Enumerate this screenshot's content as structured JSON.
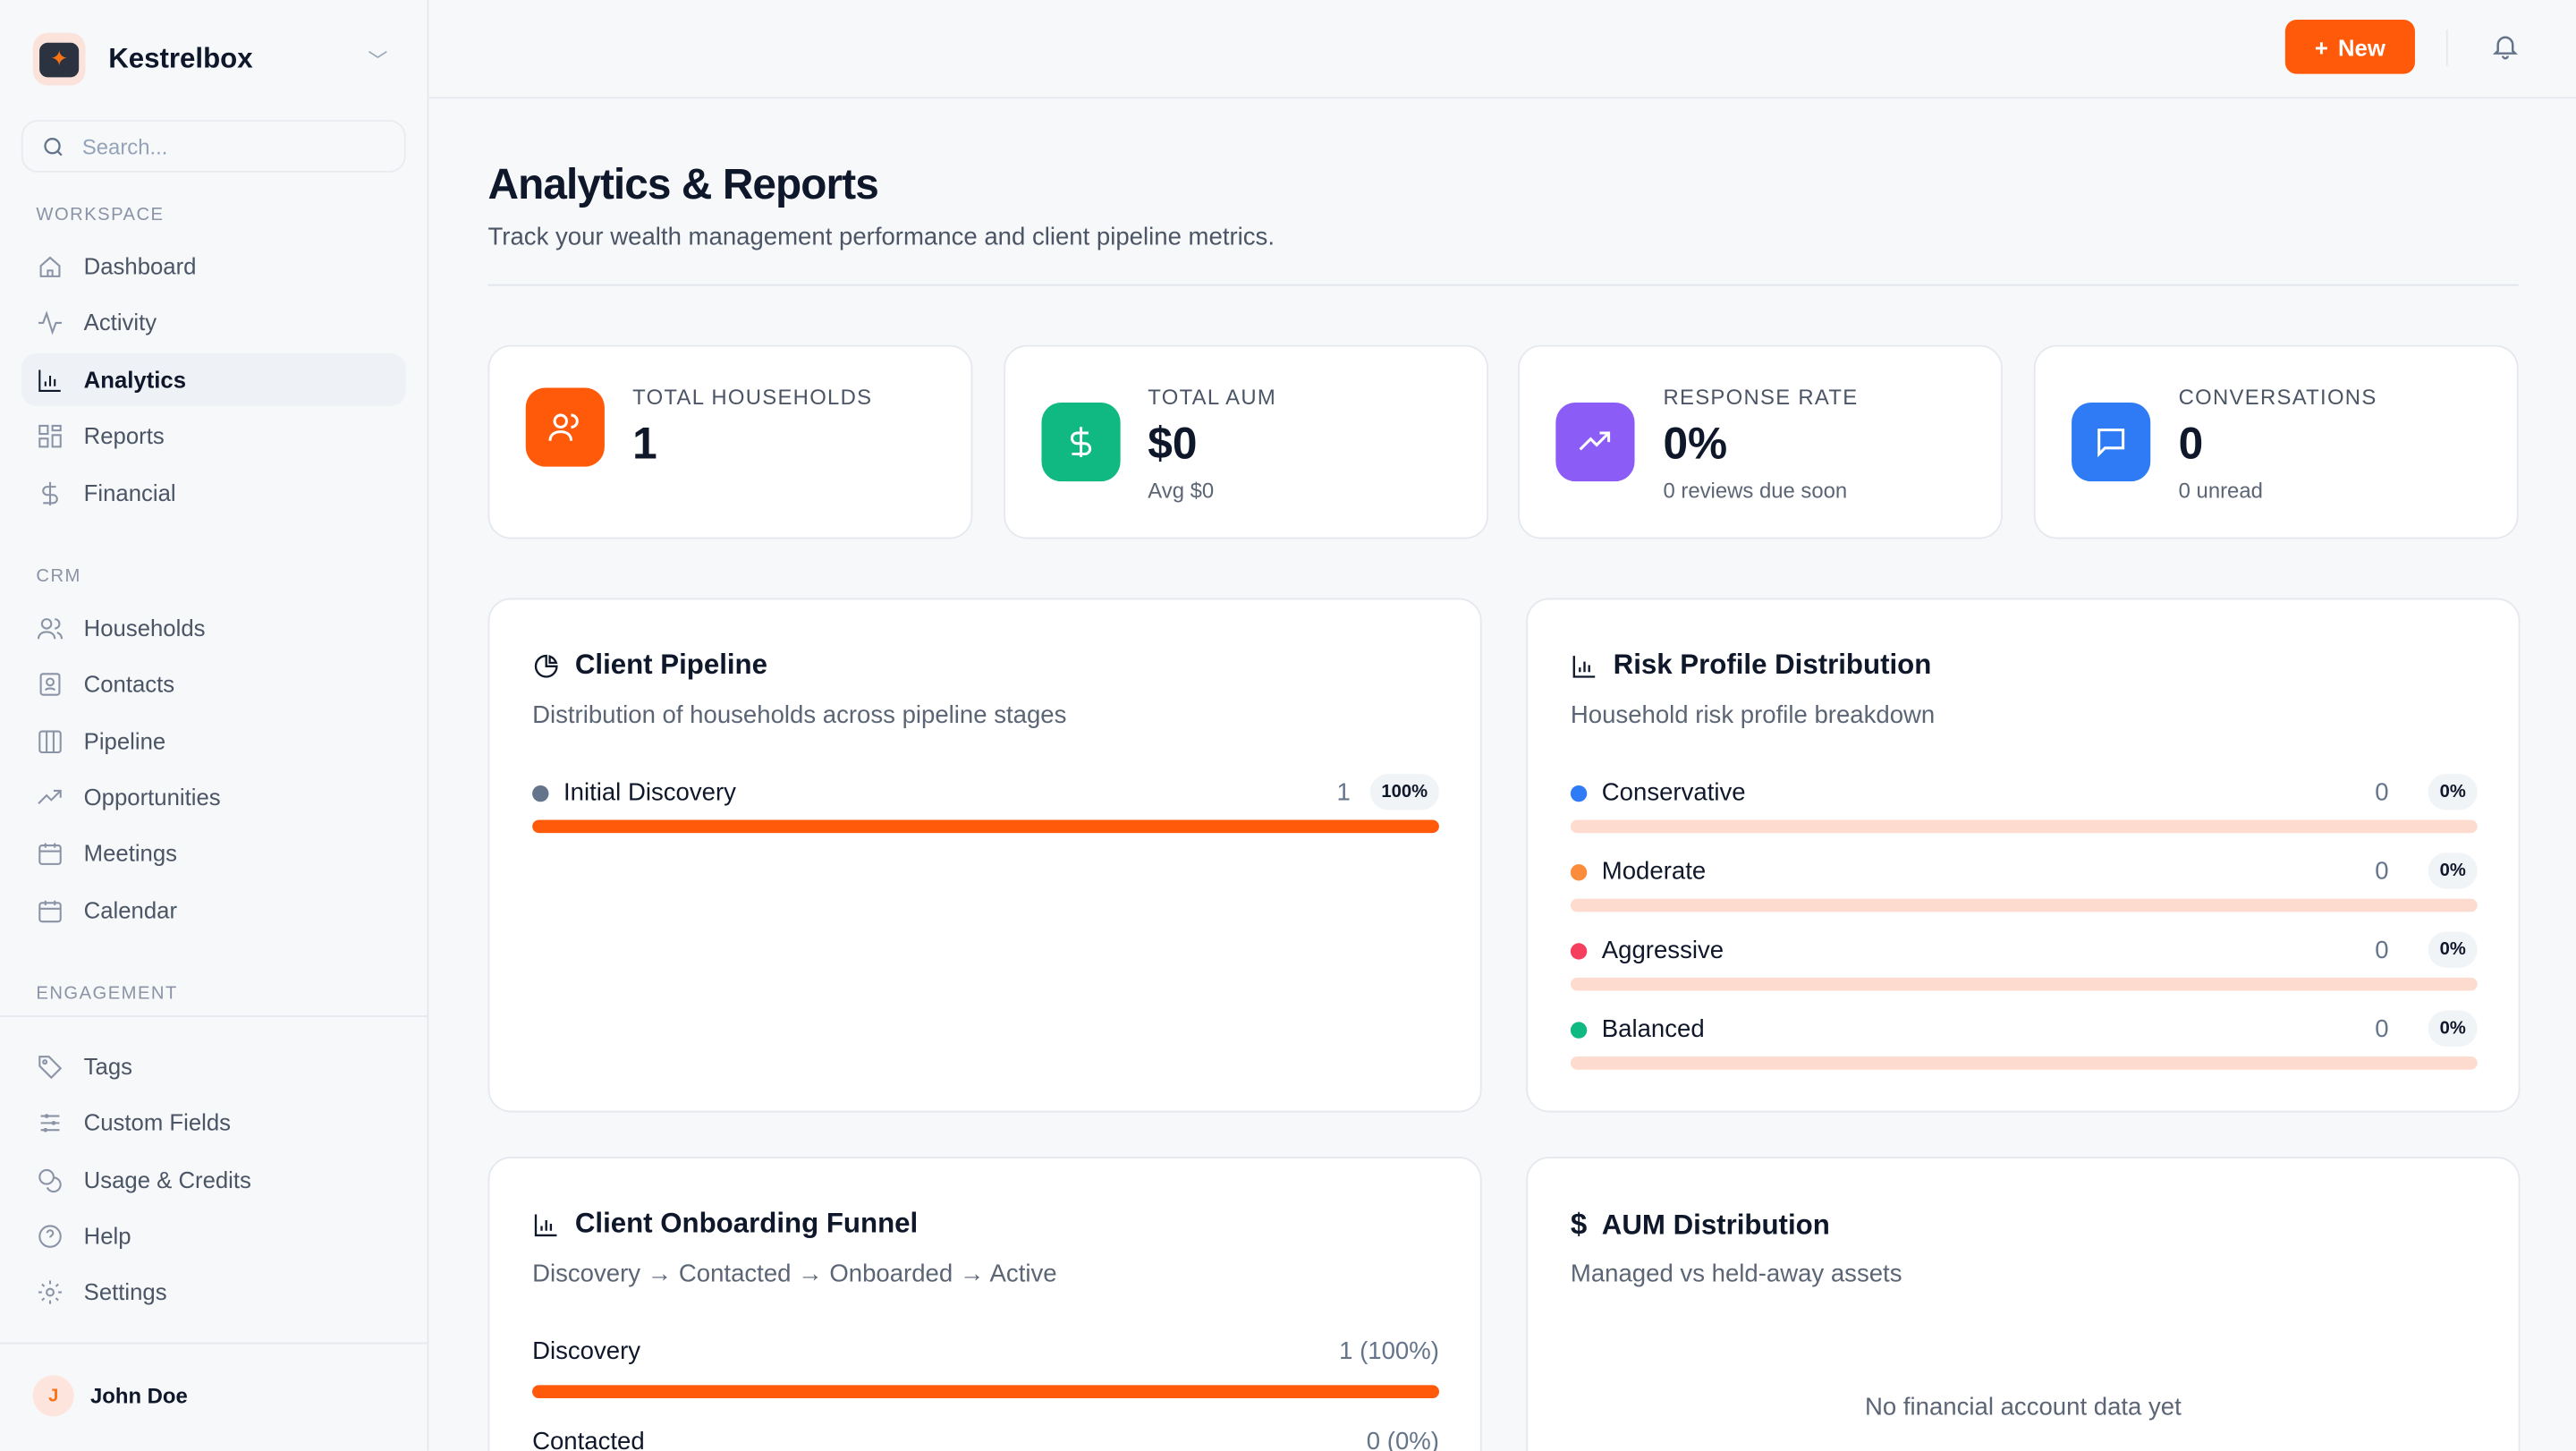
{
  "brand": {
    "name": "Kestrelbox"
  },
  "search": {
    "placeholder": "Search..."
  },
  "sidebar": {
    "sections": [
      "WORKSPACE",
      "CRM",
      "ENGAGEMENT"
    ],
    "workspace": [
      "Dashboard",
      "Activity",
      "Analytics",
      "Reports",
      "Financial"
    ],
    "crm": [
      "Households",
      "Contacts",
      "Pipeline",
      "Opportunities",
      "Meetings",
      "Calendar"
    ],
    "engagement": [
      "Tags",
      "Custom Fields",
      "Usage & Credits",
      "Help",
      "Settings"
    ],
    "active": "Analytics"
  },
  "user": {
    "name": "John Doe",
    "initial": "J"
  },
  "topbar": {
    "new_label": "New"
  },
  "page": {
    "title": "Analytics & Reports",
    "subtitle": "Track your wealth management performance and client pipeline metrics."
  },
  "stats": [
    {
      "label": "TOTAL HOUSEHOLDS",
      "value": "1",
      "sub": "",
      "color": "#ff5a0a"
    },
    {
      "label": "TOTAL AUM",
      "value": "$0",
      "sub": "Avg $0",
      "color": "#10b981"
    },
    {
      "label": "RESPONSE RATE",
      "value": "0%",
      "sub": "0 reviews due soon",
      "color": "#8b5cf6"
    },
    {
      "label": "CONVERSATIONS",
      "value": "0",
      "sub": "0 unread",
      "color": "#2f7bf6"
    }
  ],
  "pipeline": {
    "title": "Client Pipeline",
    "desc": "Distribution of households across pipeline stages",
    "rows": [
      {
        "name": "Initial Discovery",
        "count": "1",
        "pct": "100%",
        "fill": 1,
        "color": "#64748b"
      }
    ]
  },
  "risk": {
    "title": "Risk Profile Distribution",
    "desc": "Household risk profile breakdown",
    "rows": [
      {
        "name": "Conservative",
        "count": "0",
        "pct": "0%",
        "fill": 0,
        "color": "#2f7bf6"
      },
      {
        "name": "Moderate",
        "count": "0",
        "pct": "0%",
        "fill": 0,
        "color": "#fb8c3c"
      },
      {
        "name": "Aggressive",
        "count": "0",
        "pct": "0%",
        "fill": 0,
        "color": "#f43f5e"
      },
      {
        "name": "Balanced",
        "count": "0",
        "pct": "0%",
        "fill": 0,
        "color": "#10b981"
      }
    ]
  },
  "funnel": {
    "title": "Client Onboarding Funnel",
    "desc": "Discovery → Contacted → Onboarded → Active",
    "rows": [
      {
        "name": "Discovery",
        "count": "1 (100%)",
        "fill": 1
      },
      {
        "name": "Contacted",
        "count": "0 (0%)",
        "fill": 0
      }
    ]
  },
  "aum": {
    "title": "AUM Distribution",
    "desc": "Managed vs held-away assets",
    "empty": "No financial account data yet"
  }
}
